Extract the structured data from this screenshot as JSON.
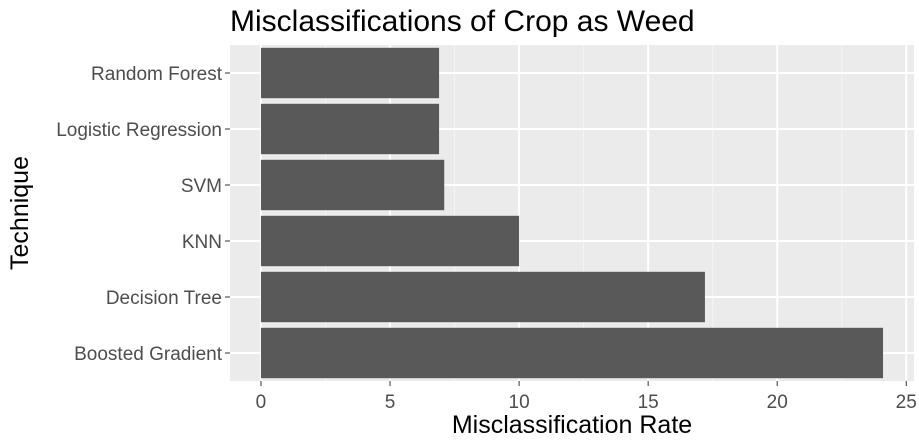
{
  "chart_data": {
    "type": "bar",
    "orientation": "horizontal",
    "title": "Misclassifications of Crop as Weed",
    "xlabel": "Misclassification Rate",
    "ylabel": "Technique",
    "categories": [
      "Boosted Gradient",
      "Decision Tree",
      "KNN",
      "SVM",
      "Logistic Regression",
      "Random Forest"
    ],
    "values": [
      24.1,
      17.2,
      10.0,
      7.1,
      6.9,
      6.9
    ],
    "xlim": [
      -1.2,
      25.3
    ],
    "xticks": [
      0,
      5,
      10,
      15,
      20,
      25
    ],
    "grid": true,
    "legend": "none",
    "colors": {
      "bar": "#595959",
      "panel": "#ebebeb",
      "grid_major": "#ffffff",
      "tick": "#333333"
    }
  }
}
